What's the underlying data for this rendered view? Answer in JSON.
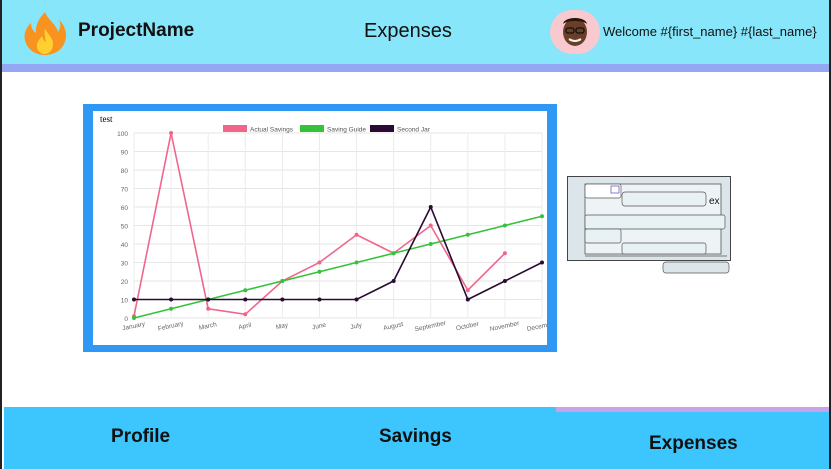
{
  "header": {
    "brand": "ProjectName",
    "page_title": "Expenses",
    "welcome": "Welcome #{first_name} #{last_name}"
  },
  "chart_card": {
    "label": "test"
  },
  "widget": {
    "fragment_text": "ex"
  },
  "footer": {
    "nav": [
      {
        "label": "Profile"
      },
      {
        "label": "Savings"
      },
      {
        "label": "Expenses",
        "active": true
      }
    ]
  },
  "colors": {
    "header_bg": "#88e6fb",
    "header_strip": "#95a7f2",
    "footer_bg": "#3cc6fd",
    "active_strip": "#c9a2e8",
    "chart_frame": "#2f98f5"
  },
  "icons": {
    "logo": "fire-icon",
    "avatar": "avatar-memoji"
  },
  "chart_data": {
    "type": "line",
    "categories": [
      "January",
      "February",
      "March",
      "April",
      "May",
      "June",
      "July",
      "August",
      "September",
      "October",
      "November",
      "December"
    ],
    "ylim": [
      0,
      100
    ],
    "yticks": [
      0,
      10,
      20,
      30,
      40,
      50,
      60,
      70,
      80,
      90,
      100
    ],
    "grid": true,
    "legend_position": "top",
    "series": [
      {
        "name": "Actual Savings",
        "color": "#f0668b",
        "values": [
          1,
          100,
          5,
          2,
          20,
          30,
          45,
          35,
          50,
          15,
          35,
          null
        ]
      },
      {
        "name": "Saving Guide",
        "color": "#33c23a",
        "values": [
          0,
          5,
          10,
          15,
          20,
          25,
          30,
          35,
          40,
          45,
          50,
          55
        ]
      },
      {
        "name": "Second Jar",
        "color": "#2b0a33",
        "values": [
          10,
          10,
          10,
          10,
          10,
          10,
          10,
          20,
          60,
          10,
          20,
          30
        ]
      }
    ]
  }
}
